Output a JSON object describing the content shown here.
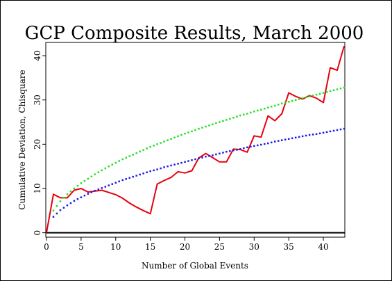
{
  "chart_data": {
    "type": "line",
    "title": "GCP Composite Results, March 2000",
    "xlabel": "Number of Global Events",
    "ylabel": "Cumulative Deviation, Chisquare",
    "xlim": [
      0,
      43
    ],
    "ylim": [
      -1,
      43
    ],
    "xticks": [
      0,
      5,
      10,
      15,
      20,
      25,
      30,
      35,
      40
    ],
    "yticks": [
      0,
      10,
      20,
      30,
      40
    ],
    "grid": false,
    "legend": "none",
    "zero_line": 0,
    "series": [
      {
        "color": "#e8000b",
        "style": "solid",
        "x": [
          0,
          1,
          2,
          3,
          4,
          5,
          6,
          7,
          8,
          9,
          10,
          11,
          12,
          13,
          14,
          15,
          16,
          17,
          18,
          19,
          20,
          21,
          22,
          23,
          24,
          25,
          26,
          27,
          28,
          29,
          30,
          31,
          32,
          33,
          34,
          35,
          36,
          37,
          38,
          39,
          40,
          41,
          42,
          43
        ],
        "values": [
          0,
          8.7,
          7.9,
          7.9,
          9.6,
          10.0,
          9.2,
          9.4,
          9.6,
          9.1,
          8.6,
          7.8,
          6.7,
          5.8,
          5.0,
          4.3,
          11.0,
          11.8,
          12.5,
          13.8,
          13.5,
          14.0,
          16.9,
          17.9,
          17.0,
          16.0,
          16.0,
          18.9,
          18.8,
          18.2,
          21.9,
          21.6,
          26.4,
          25.3,
          26.9,
          31.6,
          30.8,
          30.2,
          31.0,
          30.4,
          29.4,
          37.3,
          36.7,
          42.2
        ]
      },
      {
        "color": "#22e022",
        "style": "dotted",
        "x": [
          1,
          2,
          3,
          4,
          5,
          6,
          7,
          8,
          9,
          10,
          11,
          12,
          13,
          14,
          15,
          16,
          17,
          18,
          19,
          20,
          21,
          22,
          23,
          24,
          25,
          26,
          27,
          28,
          29,
          30,
          31,
          32,
          33,
          34,
          35,
          36,
          37,
          38,
          39,
          40,
          41,
          42,
          43
        ],
        "values": [
          5.0,
          7.1,
          8.7,
          10.0,
          11.2,
          12.2,
          13.2,
          14.1,
          15.0,
          15.8,
          16.6,
          17.3,
          18.0,
          18.7,
          19.4,
          20.0,
          20.6,
          21.2,
          21.8,
          22.4,
          22.9,
          23.5,
          24.0,
          24.5,
          25.0,
          25.5,
          26.0,
          26.5,
          26.9,
          27.4,
          27.8,
          28.3,
          28.7,
          29.2,
          29.6,
          30.0,
          30.4,
          30.8,
          31.2,
          31.6,
          32.0,
          32.4,
          32.8
        ]
      },
      {
        "color": "#1a1ae6",
        "style": "dotted",
        "x": [
          1,
          2,
          3,
          4,
          5,
          6,
          7,
          8,
          9,
          10,
          11,
          12,
          13,
          14,
          15,
          16,
          17,
          18,
          19,
          20,
          21,
          22,
          23,
          24,
          25,
          26,
          27,
          28,
          29,
          30,
          31,
          32,
          33,
          34,
          35,
          36,
          37,
          38,
          39,
          40,
          41,
          42,
          43
        ],
        "values": [
          3.6,
          5.1,
          6.2,
          7.2,
          8.0,
          8.8,
          9.5,
          10.1,
          10.7,
          11.3,
          11.9,
          12.4,
          12.9,
          13.4,
          13.9,
          14.3,
          14.8,
          15.2,
          15.6,
          16.0,
          16.4,
          16.8,
          17.2,
          17.5,
          17.9,
          18.3,
          18.6,
          18.9,
          19.3,
          19.6,
          19.9,
          20.2,
          20.6,
          20.9,
          21.2,
          21.5,
          21.8,
          22.1,
          22.3,
          22.6,
          22.9,
          23.2,
          23.5
        ]
      }
    ]
  }
}
